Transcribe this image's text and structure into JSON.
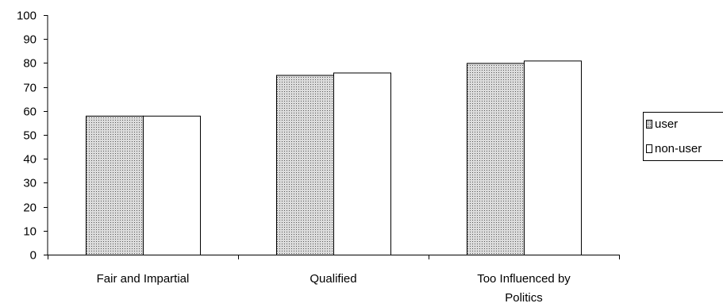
{
  "chart_data": {
    "type": "bar",
    "categories": [
      "Fair and Impartial",
      "Qualified",
      "Too Influenced by Politics"
    ],
    "category_lines": [
      [
        "Fair and Impartial"
      ],
      [
        "Qualified"
      ],
      [
        "Too Influenced by",
        "Politics"
      ]
    ],
    "series": [
      {
        "name": "user",
        "values": [
          58,
          75,
          80
        ],
        "fill": "dotted gray"
      },
      {
        "name": "non-user",
        "values": [
          58,
          76,
          81
        ],
        "fill": "#ffffff"
      }
    ],
    "ylim": [
      0,
      100
    ],
    "yticks": [
      0,
      10,
      20,
      30,
      40,
      50,
      60,
      70,
      80,
      90,
      100
    ],
    "legend": "right",
    "grid": false,
    "title": "",
    "xlabel": "",
    "ylabel": ""
  }
}
